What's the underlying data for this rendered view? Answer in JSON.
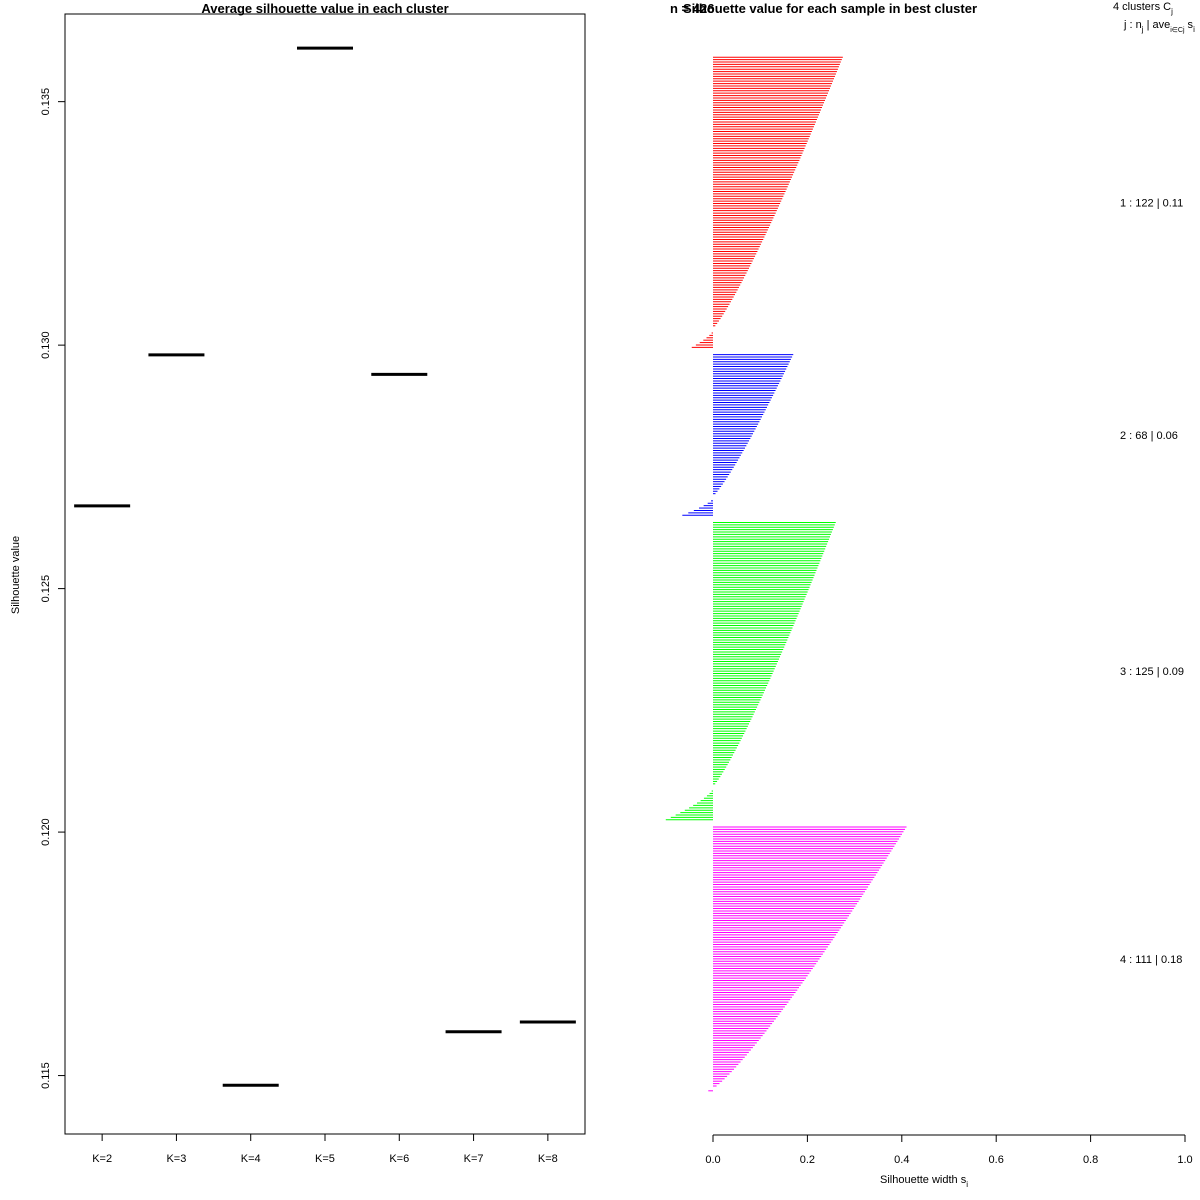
{
  "chart_data": [
    {
      "type": "scatter",
      "title": "Average silhouette value in each cluster",
      "xlabel": "",
      "ylabel": "Silhouette value",
      "categories": [
        "K=2",
        "K=3",
        "K=4",
        "K=5",
        "K=6",
        "K=7",
        "K=8"
      ],
      "values": [
        0.1267,
        0.1298,
        0.1148,
        0.1361,
        0.1294,
        0.1159,
        0.1161
      ],
      "ylim": [
        0.1138,
        0.1368
      ],
      "yticks": [
        0.115,
        0.12,
        0.125,
        0.13,
        0.135
      ],
      "ytick_labels": [
        "0.115",
        "0.120",
        "0.125",
        "0.130",
        "0.135"
      ],
      "grid": false
    },
    {
      "type": "bar",
      "title": "Silhouette value for each sample in best cluster",
      "overlapped_title_text": "n = 426",
      "xlabel": "Silhouette width s",
      "xlabel_subscript": "i",
      "xlim": [
        0,
        1
      ],
      "xticks": [
        0.0,
        0.2,
        0.4,
        0.6,
        0.8,
        1.0
      ],
      "xtick_labels": [
        "0.0",
        "0.2",
        "0.4",
        "0.6",
        "0.8",
        "1.0"
      ],
      "header_line1": "4  clusters  C",
      "header_line1_sub": "j",
      "header_line2": "j :  n",
      "header_line2_sub": "j",
      "header_line2_mid": " | ave",
      "header_line2_sub2": "i∈Cj",
      "header_line2_end": "  s",
      "header_line2_end_sub": "i",
      "clusters": [
        {
          "id": 1,
          "n": 122,
          "avg": 0.11,
          "label": "1 :  122  |  0.11",
          "color": "#ff0000",
          "max": 0.275,
          "min": -0.045,
          "neg": 8
        },
        {
          "id": 2,
          "n": 68,
          "avg": 0.06,
          "label": "2 :  68  |  0.06",
          "color": "#0000ff",
          "max": 0.17,
          "min": -0.065,
          "neg": 8
        },
        {
          "id": 3,
          "n": 125,
          "avg": 0.09,
          "label": "3 :  125  |  0.09",
          "color": "#00ff00",
          "max": 0.26,
          "min": -0.1,
          "neg": 14
        },
        {
          "id": 4,
          "n": 111,
          "avg": 0.18,
          "label": "4 :  111  |  0.18",
          "color": "#ff00ff",
          "max": 0.41,
          "min": -0.01,
          "neg": 1
        }
      ]
    }
  ]
}
